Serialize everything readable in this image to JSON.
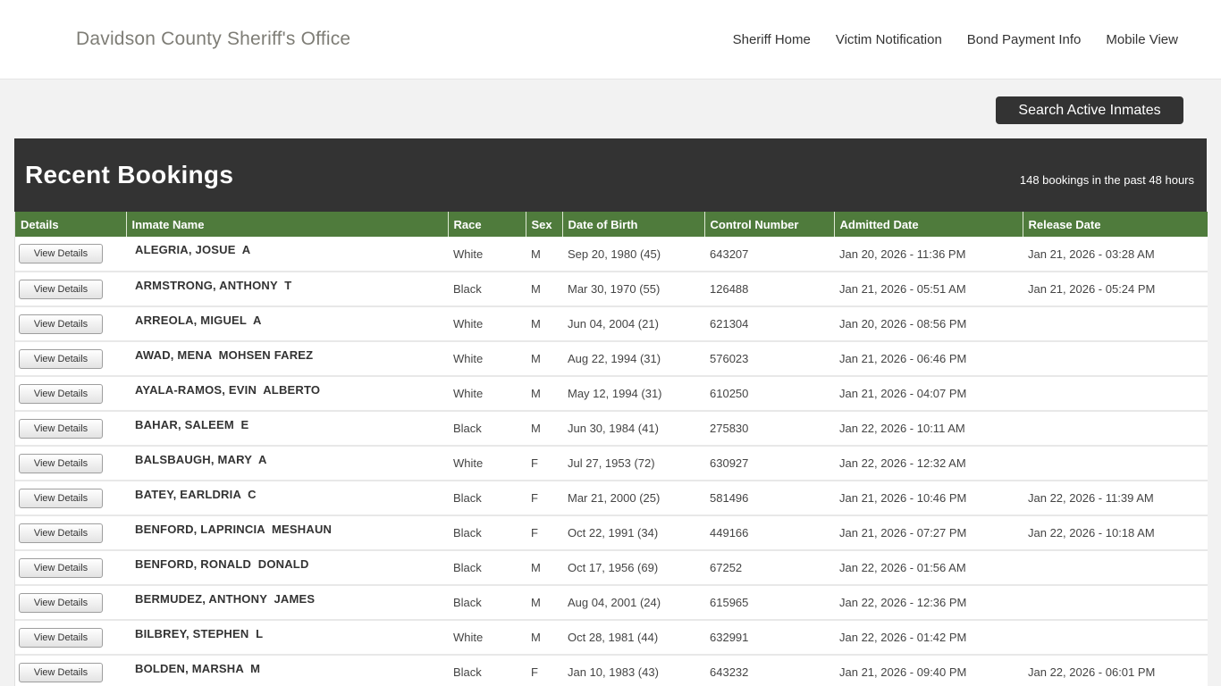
{
  "header": {
    "title": "Davidson County Sheriff's Office",
    "nav_links": [
      "Sheriff Home",
      "Victim Notification",
      "Bond Payment Info",
      "Mobile View"
    ]
  },
  "toolbar": {
    "search_button_label": "Search Active Inmates"
  },
  "banner": {
    "title": "Recent Bookings",
    "subtitle": "148 bookings in the past 48 hours"
  },
  "table": {
    "view_details_label": "View Details",
    "columns": [
      "Details",
      "Inmate Name",
      "Race",
      "Sex",
      "Date of Birth",
      "Control Number",
      "Admitted Date",
      "Release Date"
    ],
    "rows": [
      {
        "name": "ALEGRIA, JOSUE  A",
        "race": "White",
        "sex": "M",
        "dob": "Sep 20, 1980 (45)",
        "control_number": "643207",
        "admitted": "Jan 20, 2026 - 11:36 PM",
        "released": "Jan 21, 2026 - 03:28 AM"
      },
      {
        "name": "ARMSTRONG, ANTHONY  T",
        "race": "Black",
        "sex": "M",
        "dob": "Mar 30, 1970 (55)",
        "control_number": "126488",
        "admitted": "Jan 21, 2026 - 05:51 AM",
        "released": "Jan 21, 2026 - 05:24 PM"
      },
      {
        "name": "ARREOLA, MIGUEL  A",
        "race": "White",
        "sex": "M",
        "dob": "Jun 04, 2004 (21)",
        "control_number": "621304",
        "admitted": "Jan 20, 2026 - 08:56 PM",
        "released": ""
      },
      {
        "name": "AWAD, MENA  MOHSEN FAREZ",
        "race": "White",
        "sex": "M",
        "dob": "Aug 22, 1994 (31)",
        "control_number": "576023",
        "admitted": "Jan 21, 2026 - 06:46 PM",
        "released": ""
      },
      {
        "name": "AYALA-RAMOS, EVIN  ALBERTO",
        "race": "White",
        "sex": "M",
        "dob": "May 12, 1994 (31)",
        "control_number": "610250",
        "admitted": "Jan 21, 2026 - 04:07 PM",
        "released": ""
      },
      {
        "name": "BAHAR, SALEEM  E",
        "race": "Black",
        "sex": "M",
        "dob": "Jun 30, 1984 (41)",
        "control_number": "275830",
        "admitted": "Jan 22, 2026 - 10:11 AM",
        "released": ""
      },
      {
        "name": "BALSBAUGH, MARY  A",
        "race": "White",
        "sex": "F",
        "dob": "Jul 27, 1953 (72)",
        "control_number": "630927",
        "admitted": "Jan 22, 2026 - 12:32 AM",
        "released": ""
      },
      {
        "name": "BATEY, EARLDRIA  C",
        "race": "Black",
        "sex": "F",
        "dob": "Mar 21, 2000 (25)",
        "control_number": "581496",
        "admitted": "Jan 21, 2026 - 10:46 PM",
        "released": "Jan 22, 2026 - 11:39 AM"
      },
      {
        "name": "BENFORD, LAPRINCIA  MESHAUN",
        "race": "Black",
        "sex": "F",
        "dob": "Oct 22, 1991 (34)",
        "control_number": "449166",
        "admitted": "Jan 21, 2026 - 07:27 PM",
        "released": "Jan 22, 2026 - 10:18 AM"
      },
      {
        "name": "BENFORD, RONALD  DONALD",
        "race": "Black",
        "sex": "M",
        "dob": "Oct 17, 1956 (69)",
        "control_number": "67252",
        "admitted": "Jan 22, 2026 - 01:56 AM",
        "released": ""
      },
      {
        "name": "BERMUDEZ, ANTHONY  JAMES",
        "race": "Black",
        "sex": "M",
        "dob": "Aug 04, 2001 (24)",
        "control_number": "615965",
        "admitted": "Jan 22, 2026 - 12:36 PM",
        "released": ""
      },
      {
        "name": "BILBREY, STEPHEN  L",
        "race": "White",
        "sex": "M",
        "dob": "Oct 28, 1981 (44)",
        "control_number": "632991",
        "admitted": "Jan 22, 2026 - 01:42 PM",
        "released": ""
      },
      {
        "name": "BOLDEN, MARSHA  M",
        "race": "Black",
        "sex": "F",
        "dob": "Jan 10, 1983 (43)",
        "control_number": "643232",
        "admitted": "Jan 21, 2026 - 09:40 PM",
        "released": "Jan 22, 2026 - 06:01 PM"
      }
    ]
  },
  "colors": {
    "header_green": "#4f7b3c",
    "banner_dark": "#333333",
    "page_background": "#f2f2f2"
  }
}
